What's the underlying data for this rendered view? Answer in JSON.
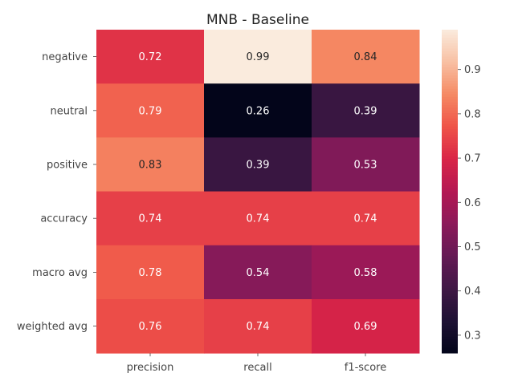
{
  "chart_data": {
    "type": "heatmap",
    "title": "MNB - Baseline",
    "rows": [
      "negative",
      "neutral",
      "positive",
      "accuracy",
      "macro avg",
      "weighted avg"
    ],
    "columns": [
      "precision",
      "recall",
      "f1-score"
    ],
    "values": [
      [
        0.72,
        0.99,
        0.84
      ],
      [
        0.79,
        0.26,
        0.39
      ],
      [
        0.83,
        0.39,
        0.53
      ],
      [
        0.74,
        0.74,
        0.74
      ],
      [
        0.78,
        0.54,
        0.58
      ],
      [
        0.76,
        0.74,
        0.69
      ]
    ],
    "colorbar": {
      "min": 0.26,
      "max": 0.99,
      "ticks": [
        "0.3",
        "0.4",
        "0.5",
        "0.6",
        "0.7",
        "0.8",
        "0.9"
      ],
      "colormap": "rocket"
    },
    "grid": false,
    "legend": "colorbar-right"
  }
}
